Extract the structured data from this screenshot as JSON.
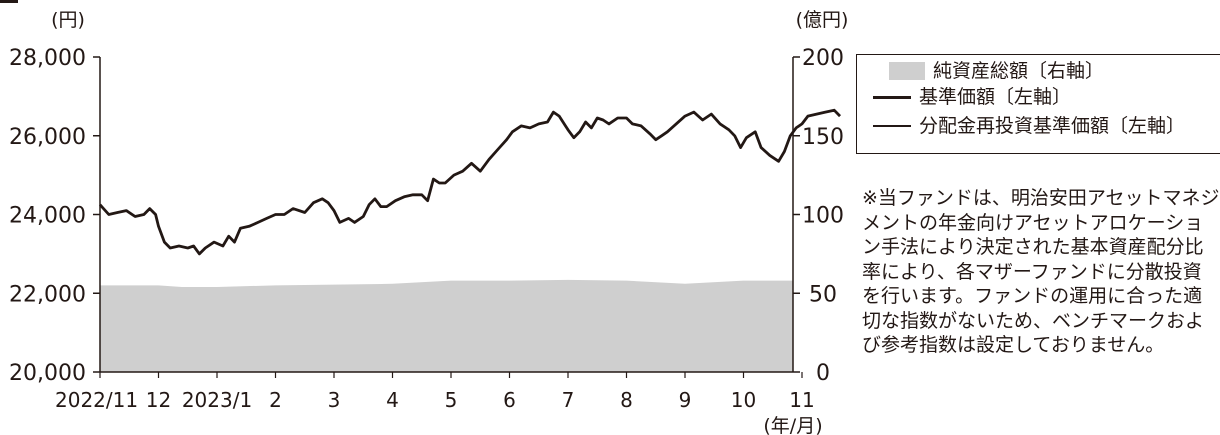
{
  "chart_data": {
    "type": "line",
    "left_axis_label": "(円)",
    "right_axis_label": "(億円)",
    "x_axis_unit": "(年/月)",
    "y_left_range": [
      20000,
      28000
    ],
    "y_right_range": [
      0,
      200
    ],
    "y_left_ticks": [
      "20,000",
      "22,000",
      "24,000",
      "26,000",
      "28,000"
    ],
    "y_right_ticks": [
      "0",
      "50",
      "100",
      "150",
      "200"
    ],
    "x_tick_labels": [
      "2022/11",
      "12",
      "2023/1",
      "2",
      "3",
      "4",
      "5",
      "6",
      "7",
      "8",
      "9",
      "10",
      "11"
    ],
    "grid": false,
    "legend_position": "right",
    "series": [
      {
        "name": "純資産総額〔右軸〕",
        "axis": "right",
        "style": "area",
        "color": "#cfcfcf",
        "points": [
          [
            0,
            55
          ],
          [
            1,
            55
          ],
          [
            1.4,
            54
          ],
          [
            2,
            54
          ],
          [
            3,
            55
          ],
          [
            4,
            55.5
          ],
          [
            5,
            56
          ],
          [
            6,
            58
          ],
          [
            7,
            58
          ],
          [
            8,
            58.5
          ],
          [
            9,
            58
          ],
          [
            10,
            56
          ],
          [
            11,
            58
          ],
          [
            12,
            58
          ]
        ]
      },
      {
        "name": "基準価額〔左軸〕",
        "axis": "left",
        "style": "thick",
        "color": "#231815",
        "points": [
          [
            0,
            24250
          ],
          [
            0.15,
            24000
          ],
          [
            0.3,
            24050
          ],
          [
            0.45,
            24100
          ],
          [
            0.6,
            23950
          ],
          [
            0.75,
            24000
          ],
          [
            0.85,
            24150
          ],
          [
            0.95,
            24000
          ],
          [
            1.0,
            23700
          ],
          [
            1.1,
            23300
          ],
          [
            1.2,
            23150
          ],
          [
            1.35,
            23200
          ],
          [
            1.5,
            23150
          ],
          [
            1.6,
            23200
          ],
          [
            1.7,
            23000
          ],
          [
            1.8,
            23150
          ],
          [
            1.95,
            23300
          ],
          [
            2.1,
            23200
          ],
          [
            2.2,
            23450
          ],
          [
            2.3,
            23300
          ],
          [
            2.4,
            23650
          ],
          [
            2.55,
            23700
          ],
          [
            2.7,
            23800
          ],
          [
            2.85,
            23900
          ],
          [
            3.0,
            24000
          ],
          [
            3.15,
            24000
          ],
          [
            3.3,
            24150
          ],
          [
            3.5,
            24050
          ],
          [
            3.65,
            24300
          ],
          [
            3.8,
            24400
          ],
          [
            3.9,
            24300
          ],
          [
            4.0,
            24100
          ],
          [
            4.1,
            23800
          ],
          [
            4.25,
            23900
          ],
          [
            4.35,
            23800
          ],
          [
            4.5,
            23950
          ],
          [
            4.6,
            24250
          ],
          [
            4.7,
            24400
          ],
          [
            4.8,
            24200
          ],
          [
            4.9,
            24200
          ],
          [
            5.05,
            24350
          ],
          [
            5.2,
            24450
          ],
          [
            5.35,
            24500
          ],
          [
            5.5,
            24500
          ],
          [
            5.6,
            24350
          ],
          [
            5.7,
            24900
          ],
          [
            5.8,
            24800
          ],
          [
            5.9,
            24800
          ],
          [
            6.05,
            25000
          ],
          [
            6.2,
            25100
          ],
          [
            6.35,
            25300
          ],
          [
            6.5,
            25100
          ],
          [
            6.65,
            25400
          ],
          [
            6.8,
            25650
          ],
          [
            6.95,
            25900
          ],
          [
            7.05,
            26100
          ],
          [
            7.2,
            26250
          ],
          [
            7.35,
            26200
          ],
          [
            7.5,
            26300
          ],
          [
            7.65,
            26350
          ],
          [
            7.75,
            26600
          ],
          [
            7.85,
            26500
          ],
          [
            8.0,
            26150
          ],
          [
            8.1,
            25950
          ],
          [
            8.2,
            26100
          ],
          [
            8.3,
            26350
          ],
          [
            8.4,
            26200
          ],
          [
            8.5,
            26450
          ],
          [
            8.6,
            26400
          ],
          [
            8.7,
            26300
          ],
          [
            8.85,
            26450
          ],
          [
            9.0,
            26450
          ],
          [
            9.1,
            26300
          ],
          [
            9.25,
            26250
          ],
          [
            9.4,
            26050
          ],
          [
            9.5,
            25900
          ],
          [
            9.6,
            26000
          ],
          [
            9.7,
            26100
          ],
          [
            9.85,
            26300
          ],
          [
            10.0,
            26500
          ],
          [
            10.15,
            26600
          ],
          [
            10.3,
            26400
          ],
          [
            10.45,
            26550
          ],
          [
            10.6,
            26300
          ],
          [
            10.75,
            26150
          ],
          [
            10.85,
            26000
          ],
          [
            10.95,
            25700
          ],
          [
            11.05,
            25950
          ],
          [
            11.2,
            26100
          ],
          [
            11.3,
            25700
          ],
          [
            11.45,
            25500
          ],
          [
            11.6,
            25350
          ],
          [
            11.7,
            25600
          ],
          [
            11.8,
            26000
          ],
          [
            11.9,
            26200
          ],
          [
            12.0,
            26300
          ],
          [
            12.1,
            26500
          ],
          [
            12.25,
            26550
          ],
          [
            12.4,
            26600
          ],
          [
            12.55,
            26650
          ],
          [
            12.65,
            26500
          ]
        ]
      },
      {
        "name": "分配金再投資基準価額〔左軸〕",
        "axis": "left",
        "style": "thin",
        "color": "#231815",
        "points": [
          [
            0,
            24250
          ],
          [
            0.15,
            24000
          ],
          [
            0.3,
            24050
          ],
          [
            0.45,
            24100
          ],
          [
            0.6,
            23950
          ],
          [
            0.75,
            24000
          ],
          [
            0.85,
            24150
          ],
          [
            0.95,
            24000
          ],
          [
            1.0,
            23700
          ],
          [
            1.1,
            23300
          ],
          [
            1.2,
            23150
          ],
          [
            1.35,
            23200
          ],
          [
            1.5,
            23150
          ],
          [
            1.6,
            23200
          ],
          [
            1.7,
            23000
          ],
          [
            1.8,
            23150
          ],
          [
            1.95,
            23300
          ],
          [
            2.1,
            23200
          ],
          [
            2.2,
            23450
          ],
          [
            2.3,
            23300
          ],
          [
            2.4,
            23650
          ],
          [
            2.55,
            23700
          ],
          [
            2.7,
            23800
          ],
          [
            2.85,
            23900
          ],
          [
            3.0,
            24000
          ],
          [
            3.15,
            24000
          ],
          [
            3.3,
            24150
          ],
          [
            3.5,
            24050
          ],
          [
            3.65,
            24300
          ],
          [
            3.8,
            24400
          ],
          [
            3.9,
            24300
          ],
          [
            4.0,
            24100
          ],
          [
            4.1,
            23800
          ],
          [
            4.25,
            23900
          ],
          [
            4.35,
            23800
          ],
          [
            4.5,
            23950
          ],
          [
            4.6,
            24250
          ],
          [
            4.7,
            24400
          ],
          [
            4.8,
            24200
          ],
          [
            4.9,
            24200
          ],
          [
            5.05,
            24350
          ],
          [
            5.2,
            24450
          ],
          [
            5.35,
            24500
          ],
          [
            5.5,
            24500
          ],
          [
            5.6,
            24350
          ],
          [
            5.7,
            24900
          ],
          [
            5.8,
            24800
          ],
          [
            5.9,
            24800
          ],
          [
            6.05,
            25000
          ],
          [
            6.2,
            25100
          ],
          [
            6.35,
            25300
          ],
          [
            6.5,
            25100
          ],
          [
            6.65,
            25400
          ],
          [
            6.8,
            25650
          ],
          [
            6.95,
            25900
          ],
          [
            7.05,
            26100
          ],
          [
            7.2,
            26250
          ],
          [
            7.35,
            26200
          ],
          [
            7.5,
            26300
          ],
          [
            7.65,
            26350
          ],
          [
            7.75,
            26600
          ],
          [
            7.85,
            26500
          ],
          [
            8.0,
            26150
          ],
          [
            8.1,
            25950
          ],
          [
            8.2,
            26100
          ],
          [
            8.3,
            26350
          ],
          [
            8.4,
            26200
          ],
          [
            8.5,
            26450
          ],
          [
            8.6,
            26400
          ],
          [
            8.7,
            26300
          ],
          [
            8.85,
            26450
          ],
          [
            9.0,
            26450
          ],
          [
            9.1,
            26300
          ],
          [
            9.25,
            26250
          ],
          [
            9.4,
            26050
          ],
          [
            9.5,
            25900
          ],
          [
            9.6,
            26000
          ],
          [
            9.7,
            26100
          ],
          [
            9.85,
            26300
          ],
          [
            10.0,
            26500
          ],
          [
            10.15,
            26600
          ],
          [
            10.3,
            26400
          ],
          [
            10.45,
            26550
          ],
          [
            10.6,
            26300
          ],
          [
            10.75,
            26150
          ],
          [
            10.85,
            26000
          ],
          [
            10.95,
            25700
          ],
          [
            11.05,
            25950
          ],
          [
            11.2,
            26100
          ],
          [
            11.3,
            25700
          ],
          [
            11.45,
            25500
          ],
          [
            11.6,
            25350
          ],
          [
            11.7,
            25600
          ],
          [
            11.8,
            26000
          ],
          [
            11.9,
            26200
          ],
          [
            12.0,
            26300
          ],
          [
            12.1,
            26500
          ],
          [
            12.25,
            26550
          ],
          [
            12.4,
            26600
          ],
          [
            12.55,
            26650
          ],
          [
            12.65,
            26500
          ]
        ]
      }
    ]
  },
  "legend": {
    "items": [
      {
        "label": "純資産総額〔右軸〕",
        "swatch": "area"
      },
      {
        "label": "基準価額〔左軸〕",
        "swatch": "thick"
      },
      {
        "label": "分配金再投資基準価額〔左軸〕",
        "swatch": "thin"
      }
    ]
  },
  "note": "※当ファンドは、明治安田アセットマネジメントの年金向けアセットアロケーション手法により決定された基本資産配分比率により、各マザーファンドに分散投資を行います。ファンドの運用に合った適切な指数がないため、ベンチマークおよび参考指数は設定しておりません。"
}
